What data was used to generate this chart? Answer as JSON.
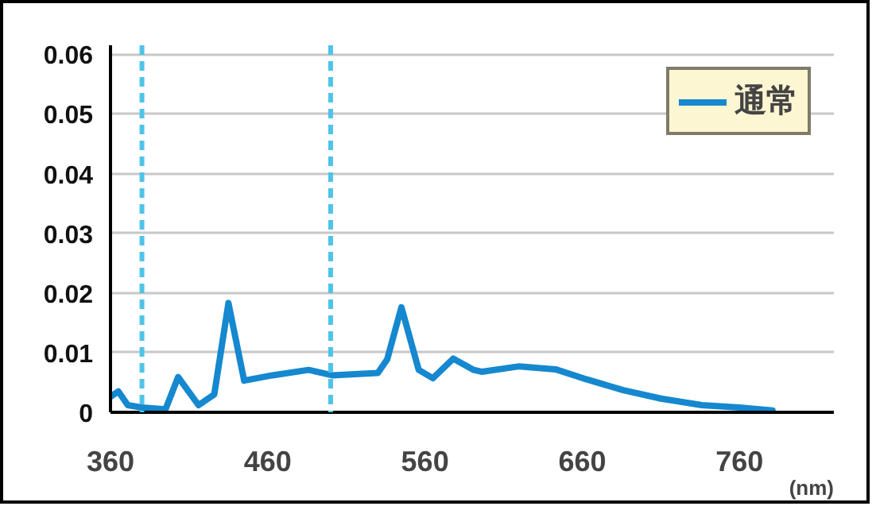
{
  "chart_data": {
    "type": "line",
    "xlabel": "(nm)",
    "xlim": [
      360,
      820
    ],
    "ylim": [
      0,
      0.0615
    ],
    "xticks": [
      360,
      460,
      560,
      660,
      760
    ],
    "yticks": [
      0,
      0.01,
      0.02,
      0.03,
      0.04,
      0.05,
      0.06
    ],
    "grid": "y",
    "legend": "top right",
    "line_style": "solid",
    "marker": "none",
    "ref_lines": [
      {
        "axis": "x",
        "value": 380,
        "color": "#4fc3ea",
        "line_style": "dashed"
      },
      {
        "axis": "x",
        "value": 500,
        "color": "#4fc3ea",
        "line_style": "dashed"
      }
    ],
    "series": [
      {
        "name": "通常",
        "color": "#1588cf",
        "x": [
          360,
          365,
          371,
          380,
          395,
          403,
          416,
          426,
          435,
          445,
          463,
          486,
          501,
          530,
          536,
          545,
          556,
          565,
          578,
          591,
          596,
          620,
          643,
          663,
          686,
          710,
          736,
          760,
          781
        ],
        "values": [
          0.0026,
          0.0035,
          0.0012,
          0.0008,
          0.0005,
          0.0059,
          0.0012,
          0.003,
          0.0183,
          0.0053,
          0.0062,
          0.0071,
          0.0062,
          0.0066,
          0.0089,
          0.0176,
          0.0071,
          0.0057,
          0.009,
          0.0071,
          0.0068,
          0.0077,
          0.0072,
          0.0055,
          0.0037,
          0.0023,
          0.0012,
          0.0008,
          0.0003
        ]
      }
    ]
  }
}
